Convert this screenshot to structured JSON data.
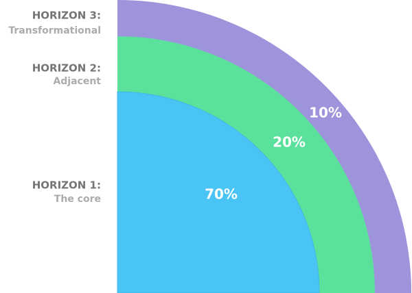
{
  "horizons": [
    {
      "title": "HORIZON 1:",
      "subtitle": "The core",
      "share": "70%"
    },
    {
      "title": "HORIZON 2:",
      "subtitle": "Adjacent",
      "share": "20%"
    },
    {
      "title": "HORIZON 3:",
      "subtitle": "Transformational",
      "share": "10%"
    }
  ]
}
